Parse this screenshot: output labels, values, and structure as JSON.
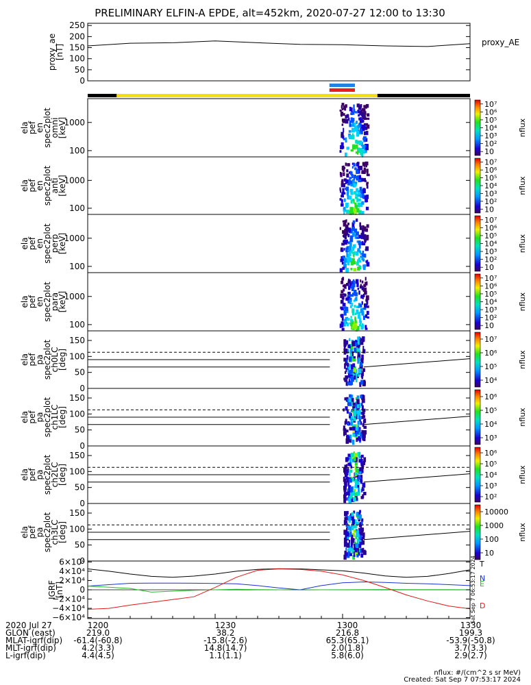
{
  "title": "PRELIMINARY ELFIN-A EPDE, alt=452km, 2020-07-27 12:00 to 13:30",
  "side_label": "proxy_AE",
  "colors": {
    "ae_trace": "#000000",
    "lc_line": "#000000",
    "bar_black": "#000000",
    "bar_yellow": "#f5dc14",
    "bar_blue": "#1e82e6",
    "bar_red": "#e61e1e",
    "grf_T": "#000000",
    "grf_N": "#1a2fd6",
    "grf_E": "#22bb22",
    "grf_D": "#e01818"
  },
  "chart_data": [
    {
      "type": "line",
      "id": "proxy_ae",
      "ylabel_lines": [
        "proxy_ae",
        "[nT]"
      ],
      "yticks": [
        "0",
        "50",
        "100",
        "150",
        "200",
        "250"
      ],
      "ylim": [
        0,
        260
      ],
      "x_minutes": [
        0,
        10,
        20,
        30,
        40,
        50,
        60,
        70,
        80,
        90
      ],
      "values": [
        158,
        170,
        172,
        180,
        172,
        165,
        163,
        158,
        155,
        168
      ]
    },
    {
      "type": "heatmap",
      "id": "spec_omni",
      "ylabel_lines": [
        "ela",
        "pef",
        "en",
        "spec2plot",
        "omni",
        "[keV]"
      ],
      "yticks": [
        "100",
        "1000"
      ],
      "yscale": "log",
      "ylim": [
        60,
        7000
      ],
      "cbar": {
        "label": "nflux",
        "ticks": [
          "10",
          "10²",
          "10³",
          "10⁴",
          "10⁵",
          "10⁶",
          "10⁷"
        ]
      }
    },
    {
      "type": "heatmap",
      "id": "spec_anti",
      "ylabel_lines": [
        "ela",
        "pef",
        "en",
        "spec2plot",
        "anti",
        "[keV]"
      ],
      "yticks": [
        "100",
        "1000"
      ],
      "yscale": "log",
      "ylim": [
        60,
        7000
      ],
      "cbar": {
        "label": "nflux",
        "ticks": [
          "10",
          "10²",
          "10³",
          "10⁴",
          "10⁵",
          "10⁶",
          "10⁷"
        ]
      }
    },
    {
      "type": "heatmap",
      "id": "spec_perp",
      "ylabel_lines": [
        "ela",
        "pef",
        "en",
        "spec2plot",
        "perp",
        "[keV]"
      ],
      "yticks": [
        "100",
        "1000"
      ],
      "yscale": "log",
      "ylim": [
        60,
        7000
      ],
      "cbar": {
        "label": "nflux",
        "ticks": [
          "10",
          "10²",
          "10³",
          "10⁴",
          "10⁵",
          "10⁶",
          "10⁷"
        ]
      }
    },
    {
      "type": "heatmap",
      "id": "spec_para",
      "ylabel_lines": [
        "ela",
        "pef",
        "en",
        "spec2plot",
        "para",
        "[keV]"
      ],
      "yticks": [
        "100",
        "1000"
      ],
      "yscale": "log",
      "ylim": [
        60,
        7000
      ],
      "cbar": {
        "label": "nflux",
        "ticks": [
          "10",
          "10²",
          "10³",
          "10⁴",
          "10⁵",
          "10⁶",
          "10⁷"
        ]
      }
    },
    {
      "type": "heatmap",
      "id": "pa_ch0",
      "ylabel_lines": [
        "ela",
        "pef",
        "pa",
        "spec2plot",
        "ch0LC",
        "[deg]"
      ],
      "yticks": [
        "0",
        "50",
        "100",
        "150"
      ],
      "ylim": [
        0,
        180
      ],
      "cbar": {
        "label": "nflux",
        "ticks": [
          "10⁴",
          "10⁵",
          "10⁶",
          "10⁷"
        ]
      }
    },
    {
      "type": "heatmap",
      "id": "pa_ch1",
      "ylabel_lines": [
        "ela",
        "pef",
        "pa",
        "spec2plot",
        "ch1LC",
        "[deg]"
      ],
      "yticks": [
        "0",
        "50",
        "100",
        "150"
      ],
      "ylim": [
        0,
        180
      ],
      "cbar": {
        "label": "nflux",
        "ticks": [
          "10³",
          "10⁴",
          "10⁵",
          "10⁶"
        ]
      }
    },
    {
      "type": "heatmap",
      "id": "pa_ch2",
      "ylabel_lines": [
        "ela",
        "pef",
        "pa",
        "spec2plot",
        "ch2LC",
        "[deg]"
      ],
      "yticks": [
        "0",
        "50",
        "100",
        "150"
      ],
      "ylim": [
        0,
        180
      ],
      "cbar": {
        "label": "nflux",
        "ticks": [
          "10²",
          "10³",
          "10⁴",
          "10⁵",
          "10⁶"
        ]
      }
    },
    {
      "type": "heatmap",
      "id": "pa_ch3",
      "ylabel_lines": [
        "ela",
        "pef",
        "pa",
        "spec2plot",
        "ch3LC",
        "[deg]"
      ],
      "yticks": [
        "0",
        "50",
        "100",
        "150"
      ],
      "ylim": [
        0,
        180
      ],
      "cbar": {
        "label": "nflux",
        "ticks": [
          "10",
          "100",
          "1000",
          "10000"
        ]
      }
    },
    {
      "type": "line",
      "id": "igrf",
      "ylabel_lines": [
        "IGRF",
        "[nT]"
      ],
      "yticks": [
        "−6×10⁴",
        "−4×10⁴",
        "−2×10⁴",
        "0",
        "2×10⁴",
        "4×10⁴",
        "6×10⁴"
      ],
      "ylim": [
        -62000,
        62000
      ],
      "side_stamp": "Sat Sep  7 06:53:17 2024",
      "x_minutes": [
        0,
        5,
        10,
        15,
        20,
        25,
        30,
        35,
        40,
        45,
        50,
        55,
        60,
        65,
        70,
        75,
        80,
        85,
        90
      ],
      "series": [
        {
          "name": "T",
          "values": [
            45000,
            40000,
            34000,
            29000,
            27000,
            29500,
            34000,
            40000,
            44000,
            45500,
            45000,
            43000,
            41000,
            36000,
            30000,
            27000,
            29000,
            35000,
            43000
          ]
        },
        {
          "name": "N",
          "values": [
            8000,
            11000,
            14000,
            14500,
            14500,
            14200,
            13800,
            13000,
            9000,
            4000,
            0,
            9000,
            15000,
            17000,
            16000,
            14000,
            13000,
            11000,
            9000
          ]
        },
        {
          "name": "E",
          "values": [
            8000,
            5500,
            3000,
            -5000,
            -3000,
            -1000,
            0,
            1000,
            500,
            0,
            -500,
            0,
            200,
            500,
            600,
            500,
            400,
            300,
            200
          ]
        },
        {
          "name": "D",
          "values": [
            -42000,
            -40000,
            -33000,
            -27000,
            -21000,
            -15000,
            5000,
            27000,
            42000,
            45000,
            44000,
            40000,
            32000,
            20000,
            5000,
            -11000,
            -24000,
            -35000,
            -41000
          ]
        }
      ]
    }
  ],
  "footer": {
    "columns": [
      "1200",
      "1230",
      "1300",
      "1330"
    ],
    "date_label": "2020 Jul 27",
    "rows": [
      {
        "label": "GLON (east)",
        "values": [
          "219.0",
          "38.2",
          "216.8",
          "199.3"
        ]
      },
      {
        "label": "MLAT-igrf(dip)",
        "values": [
          "-61.4(-60.8)",
          "-15.8(-2.6)",
          "65.3(65.1)",
          "-53.9(-50.8)"
        ]
      },
      {
        "label": "MLT-igrf(dip)",
        "values": [
          "4.2(3.3)",
          "14.8(14.7)",
          "2.0(1.8)",
          "3.7(3.3)"
        ]
      },
      {
        "label": "L-igrf(dip)",
        "values": [
          "4.4(4.5)",
          "1.1(1.1)",
          "5.8(6.0)",
          "2.9(2.7)"
        ]
      }
    ],
    "note_units": "nflux: #/(cm^2 s sr MeV)",
    "note_created": "Created: Sat Sep  7 07:53:17 2024"
  }
}
